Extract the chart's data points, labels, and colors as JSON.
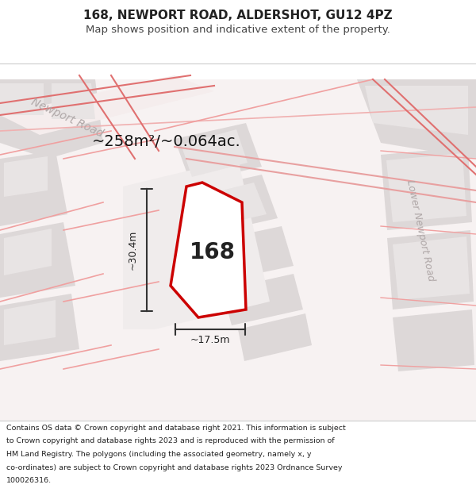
{
  "title": "168, NEWPORT ROAD, ALDERSHOT, GU12 4PZ",
  "subtitle": "Map shows position and indicative extent of the property.",
  "area_text": "~258m²/~0.064ac.",
  "label_168": "168",
  "dim_width": "~17.5m",
  "dim_height": "~30.4m",
  "footer": "Contains OS data © Crown copyright and database right 2021. This information is subject to Crown copyright and database rights 2023 and is reproduced with the permission of HM Land Registry. The polygons (including the associated geometry, namely x, y co-ordinates) are subject to Crown copyright and database rights 2023 Ordnance Survey 100026316.",
  "bg_color": "#f5f0f0",
  "map_bg": "#f8f5f5",
  "road_color_light": "#f0c0c0",
  "road_color_pink": "#e8a0a0",
  "block_color": "#e0d8d8",
  "highlight_block": "#ffffff",
  "property_outline_color": "#cc0000",
  "dimension_line_color": "#333333",
  "road_label_color": "#b0a0a0",
  "street_label_color": "#999090"
}
